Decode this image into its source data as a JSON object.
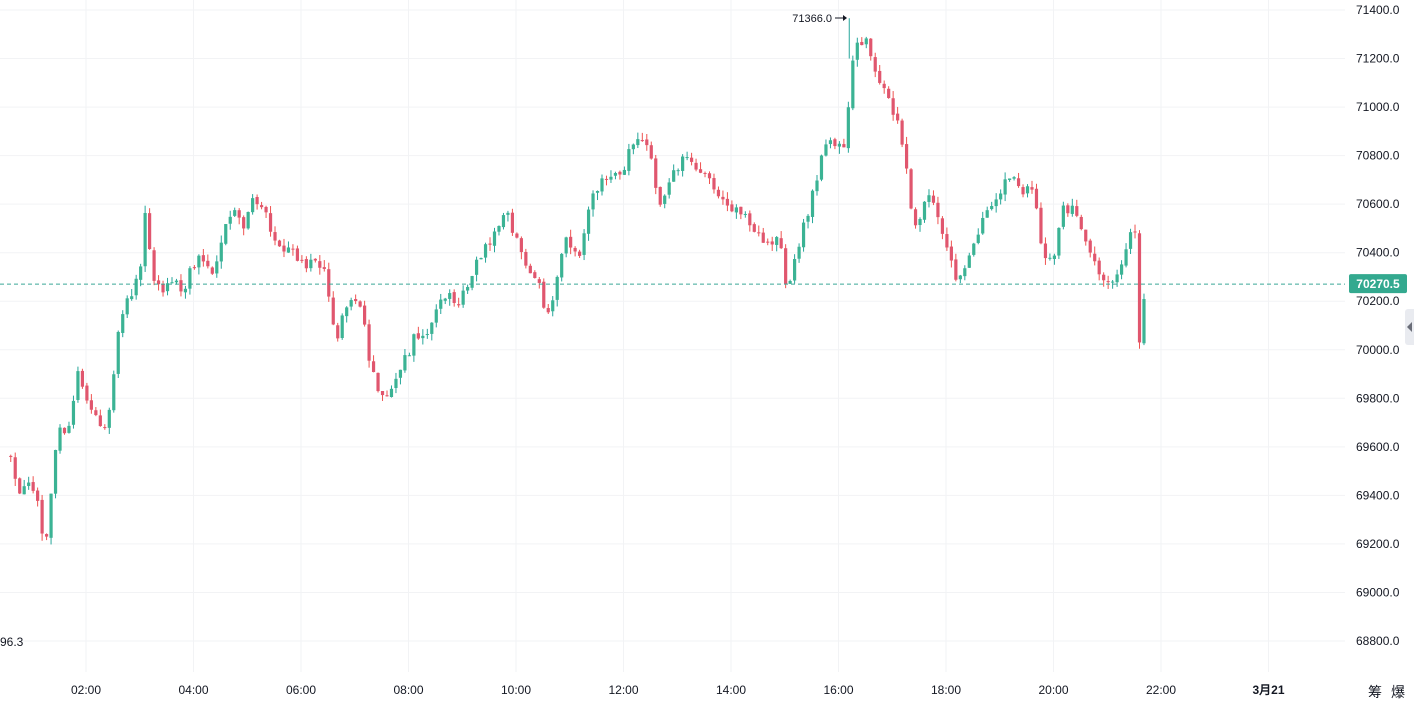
{
  "chart_data": {
    "type": "candlestick",
    "current_price": "70270.5",
    "current_price_value": 70270.5,
    "last_price_text": "96.3",
    "high_annotation": {
      "label": "71366.0",
      "price": 71366.0
    },
    "y_ticks": [
      "71400.0",
      "71200.0",
      "71000.0",
      "70800.0",
      "70600.0",
      "70400.0",
      "70200.0",
      "70000.0",
      "69800.0",
      "69600.0",
      "69400.0",
      "69200.0",
      "69000.0",
      "68800.0"
    ],
    "ylim": [
      68715,
      71425
    ],
    "x_ticks": [
      "02:00",
      "04:00",
      "06:00",
      "08:00",
      "10:00",
      "12:00",
      "14:00",
      "16:00",
      "18:00",
      "20:00",
      "22:00",
      "3月21"
    ],
    "x_tick_hours": [
      2,
      4,
      6,
      8,
      10,
      12,
      14,
      16,
      18,
      20,
      22,
      24
    ],
    "candle_interval_minutes": 5,
    "anchors": [
      [
        0.6,
        69560
      ],
      [
        0.75,
        69380
      ],
      [
        0.95,
        69450
      ],
      [
        1.1,
        69380
      ],
      [
        1.25,
        69170
      ],
      [
        1.45,
        69650
      ],
      [
        1.7,
        69700
      ],
      [
        1.85,
        69900
      ],
      [
        2.0,
        69820
      ],
      [
        2.2,
        69700
      ],
      [
        2.4,
        69680
      ],
      [
        2.6,
        70050
      ],
      [
        2.75,
        70200
      ],
      [
        3.0,
        70300
      ],
      [
        3.1,
        70570
      ],
      [
        3.25,
        70300
      ],
      [
        3.45,
        70250
      ],
      [
        3.6,
        70300
      ],
      [
        3.8,
        70240
      ],
      [
        4.1,
        70400
      ],
      [
        4.4,
        70320
      ],
      [
        4.7,
        70580
      ],
      [
        4.95,
        70500
      ],
      [
        5.1,
        70640
      ],
      [
        5.3,
        70580
      ],
      [
        5.6,
        70420
      ],
      [
        5.9,
        70400
      ],
      [
        6.1,
        70320
      ],
      [
        6.3,
        70390
      ],
      [
        6.45,
        70300
      ],
      [
        6.65,
        70030
      ],
      [
        6.9,
        70220
      ],
      [
        7.15,
        70170
      ],
      [
        7.25,
        69980
      ],
      [
        7.5,
        69800
      ],
      [
        7.8,
        69900
      ],
      [
        8.1,
        70040
      ],
      [
        8.4,
        70070
      ],
      [
        8.65,
        70230
      ],
      [
        8.95,
        70200
      ],
      [
        9.2,
        70320
      ],
      [
        9.5,
        70450
      ],
      [
        9.8,
        70580
      ],
      [
        10.2,
        70350
      ],
      [
        10.45,
        70250
      ],
      [
        10.6,
        70130
      ],
      [
        10.9,
        70450
      ],
      [
        11.2,
        70400
      ],
      [
        11.45,
        70660
      ],
      [
        11.7,
        70700
      ],
      [
        12.0,
        70720
      ],
      [
        12.15,
        70870
      ],
      [
        12.45,
        70860
      ],
      [
        12.7,
        70580
      ],
      [
        12.95,
        70750
      ],
      [
        13.2,
        70800
      ],
      [
        13.5,
        70730
      ],
      [
        13.8,
        70600
      ],
      [
        14.15,
        70590
      ],
      [
        14.4,
        70490
      ],
      [
        14.7,
        70450
      ],
      [
        14.9,
        70450
      ],
      [
        15.05,
        70230
      ],
      [
        15.25,
        70420
      ],
      [
        15.5,
        70620
      ],
      [
        15.75,
        70840
      ],
      [
        16.1,
        70850
      ],
      [
        16.3,
        71260
      ],
      [
        16.5,
        71280
      ],
      [
        16.8,
        71100
      ],
      [
        17.05,
        70970
      ],
      [
        17.25,
        70780
      ],
      [
        17.4,
        70500
      ],
      [
        17.7,
        70650
      ],
      [
        17.95,
        70490
      ],
      [
        18.2,
        70300
      ],
      [
        18.45,
        70400
      ],
      [
        18.7,
        70560
      ],
      [
        18.95,
        70640
      ],
      [
        19.2,
        70730
      ],
      [
        19.4,
        70640
      ],
      [
        19.6,
        70680
      ],
      [
        19.8,
        70400
      ],
      [
        20.0,
        70360
      ],
      [
        20.15,
        70590
      ],
      [
        20.4,
        70580
      ],
      [
        20.65,
        70390
      ],
      [
        20.9,
        70300
      ],
      [
        21.15,
        70300
      ],
      [
        21.35,
        70410
      ],
      [
        21.5,
        70570
      ],
      [
        21.6,
        70050
      ],
      [
        21.7,
        70250
      ]
    ],
    "colors": {
      "up": "#26a69a",
      "down": "#ef5350",
      "up_body": "#3bb394",
      "down_body": "#e0566e",
      "grid": "#f2f3f5",
      "price_line": "#3ba896",
      "price_tag": "#33a98f",
      "text": "#131722"
    }
  }
}
